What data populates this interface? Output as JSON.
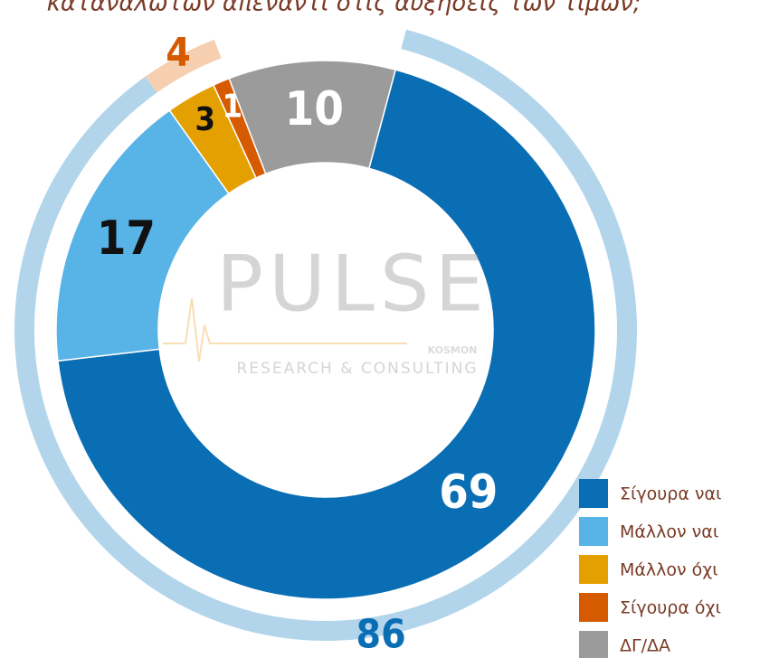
{
  "chart_data": {
    "type": "donut",
    "title": "καταναλωτών απέναντι στις αυξήσεις των τιμών;",
    "categories": [
      "Σίγουρα ναι",
      "Μάλλον ναι",
      "Μάλλον όχι",
      "Σίγουρα όχι",
      "ΔΓ/ΔΑ"
    ],
    "values": [
      69,
      17,
      3,
      1,
      10
    ],
    "colors": [
      "#0a6eb4",
      "#58b3e6",
      "#e4a000",
      "#d65a00",
      "#9b9b9b"
    ],
    "label_colors": [
      "#ffffff",
      "#111111",
      "#111111",
      "#ffffff",
      "#ffffff"
    ],
    "outer_values": [
      86,
      4
    ],
    "outer_colors": [
      "#b3d5eb",
      "#f6cfb0"
    ],
    "outer_label_colors": [
      "#0a6eb4",
      "#d65a00"
    ],
    "legend": "bottom-right",
    "watermark": {
      "brand": "PULSE",
      "sub": "RESEARCH & CONSULTING",
      "tag": "KOSMON"
    }
  }
}
